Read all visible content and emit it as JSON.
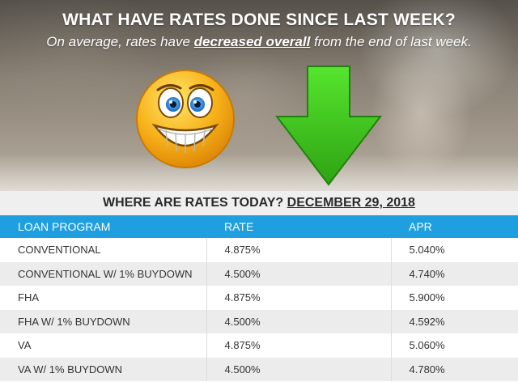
{
  "header": {
    "title": "WHAT HAVE RATES DONE SINCE LAST WEEK?",
    "subtitle_prefix": "On average, rates have ",
    "subtitle_emphasis": "decreased overall",
    "subtitle_suffix": " from the end of last week."
  },
  "icons": {
    "smiley": "grinning-smiley-icon",
    "arrow": "down-arrow-icon"
  },
  "colors": {
    "accent": "#1f9fe0",
    "arrow": "#3cc21f",
    "smiley": "#f7b21a"
  },
  "banner": {
    "label": "WHERE ARE RATES TODAY?",
    "date": "DECEMBER 29, 2018"
  },
  "table": {
    "headers": [
      "LOAN PROGRAM",
      "RATE",
      "APR"
    ],
    "rows": [
      [
        "CONVENTIONAL",
        "4.875%",
        "5.040%"
      ],
      [
        "CONVENTIONAL W/ 1% BUYDOWN",
        "4.500%",
        "4.740%"
      ],
      [
        "FHA",
        "4.875%",
        "5.900%"
      ],
      [
        "FHA W/ 1% BUYDOWN",
        "4.500%",
        "4.592%"
      ],
      [
        "VA",
        "4.875%",
        "5.060%"
      ],
      [
        "VA W/ 1% BUYDOWN",
        "4.500%",
        "4.780%"
      ]
    ]
  }
}
